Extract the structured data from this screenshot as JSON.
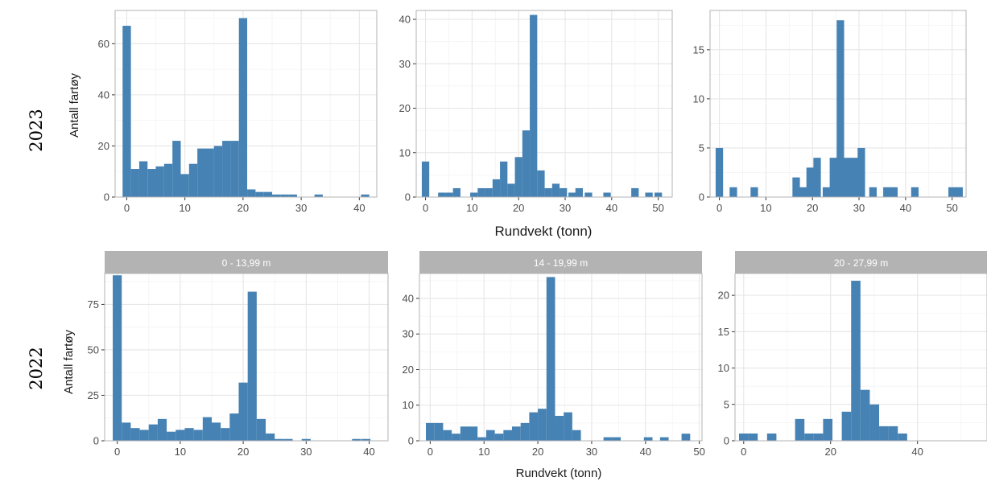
{
  "rows": [
    {
      "year": "2023",
      "ylabel": "Antall fartøy",
      "xlabel": "Rundvekt (tonn)"
    },
    {
      "year": "2022",
      "ylabel": "Antall fartøy",
      "xlabel": "Rundvekt (tonn)"
    }
  ],
  "colors": {
    "bar": "#4682b4",
    "strip": "#b3b3b3",
    "grid_major": "#e6e6e6",
    "grid_minor": "#f3f3f3",
    "border": "#b3b3b3"
  },
  "chart_data": [
    {
      "type": "bar",
      "facet": "2023 / 0 - 13,99 m",
      "strip": "",
      "x_ticks": [
        0,
        10,
        20,
        30,
        40
      ],
      "y_ticks": [
        0,
        20,
        40,
        60
      ],
      "xlim": [
        -2,
        43
      ],
      "ylim": [
        0,
        73
      ],
      "bin_width": 1.43,
      "x": [
        0,
        1.43,
        2.86,
        4.29,
        5.71,
        7.14,
        8.57,
        10,
        11.43,
        12.86,
        14.29,
        15.71,
        17.14,
        18.57,
        20,
        21.43,
        22.86,
        24.29,
        25.71,
        27.14,
        28.57,
        33,
        41
      ],
      "values": [
        67,
        11,
        14,
        11,
        12,
        13,
        22,
        9,
        13,
        19,
        19,
        20,
        22,
        22,
        70,
        3,
        2,
        2,
        1,
        1,
        1,
        1,
        1
      ]
    },
    {
      "type": "bar",
      "facet": "2023 / 14 - 19,99 m",
      "strip": "",
      "x_ticks": [
        0,
        10,
        20,
        30,
        40,
        50
      ],
      "y_ticks": [
        0,
        10,
        20,
        30,
        40
      ],
      "xlim": [
        -2,
        53
      ],
      "ylim": [
        0,
        42
      ],
      "bin_width": 1.6,
      "x": [
        0,
        3.5,
        5.1,
        6.7,
        10.4,
        12,
        13.6,
        15.2,
        16.8,
        18.4,
        20,
        21.6,
        23.2,
        24.8,
        26.4,
        28,
        29.6,
        31.5,
        33,
        35,
        39,
        45,
        48,
        50
      ],
      "values": [
        8,
        1,
        1,
        2,
        1,
        2,
        2,
        4,
        8,
        3,
        9,
        15,
        41,
        6,
        2,
        3,
        2,
        1,
        2,
        1,
        1,
        2,
        1,
        1
      ]
    },
    {
      "type": "bar",
      "facet": "2023 / 20 - 27,99 m",
      "strip": "",
      "x_ticks": [
        0,
        10,
        20,
        30,
        40,
        50
      ],
      "y_ticks": [
        0,
        5,
        10,
        15
      ],
      "xlim": [
        -2,
        53
      ],
      "ylim": [
        0,
        19
      ],
      "bin_width": 1.6,
      "x": [
        0,
        3,
        7.5,
        16.5,
        18,
        19.5,
        21,
        23,
        24.5,
        26,
        27.5,
        29,
        30.5,
        33,
        36,
        37.5,
        42,
        50,
        51.5
      ],
      "values": [
        5,
        1,
        1,
        2,
        1,
        3,
        4,
        1,
        4,
        18,
        4,
        4,
        5,
        1,
        1,
        1,
        1,
        1,
        1
      ]
    },
    {
      "type": "bar",
      "facet": "2022 / 0 - 13,99 m",
      "strip": "0 - 13,99 m",
      "x_ticks": [
        0,
        10,
        20,
        30,
        40
      ],
      "y_ticks": [
        0,
        25,
        50,
        75
      ],
      "xlim": [
        -2,
        43
      ],
      "ylim": [
        0,
        92
      ],
      "bin_width": 1.43,
      "x": [
        0,
        1.43,
        2.86,
        4.29,
        5.71,
        7.14,
        8.57,
        10,
        11.43,
        12.86,
        14.29,
        15.71,
        17.14,
        18.57,
        20,
        21.43,
        22.86,
        24.29,
        25.71,
        27.14,
        30,
        38,
        39.5
      ],
      "values": [
        91,
        10,
        7,
        6,
        9,
        12,
        5,
        6,
        7,
        6,
        13,
        10,
        7,
        15,
        32,
        82,
        12,
        4,
        1,
        1,
        1,
        1,
        1
      ]
    },
    {
      "type": "bar",
      "facet": "2022 / 14 - 19,99 m",
      "strip": "14 - 19,99 m",
      "x_ticks": [
        0,
        10,
        20,
        30,
        40,
        50
      ],
      "y_ticks": [
        0,
        10,
        20,
        30,
        40
      ],
      "xlim": [
        -2,
        50.5
      ],
      "ylim": [
        0,
        47
      ],
      "bin_width": 1.6,
      "x": [
        0,
        1.6,
        3.2,
        4.8,
        6.4,
        8,
        9.6,
        11.2,
        12.8,
        14.4,
        16,
        17.6,
        19.2,
        20.8,
        22.4,
        24,
        25.6,
        27.2,
        33,
        34.6,
        40.5,
        43.5,
        47.5
      ],
      "values": [
        5,
        5,
        3,
        2,
        4,
        4,
        1,
        3,
        2,
        3,
        4,
        5,
        8,
        9,
        46,
        7,
        8,
        3,
        1,
        1,
        1,
        1,
        2
      ]
    },
    {
      "type": "bar",
      "facet": "2022 / 20 - 27,99 m",
      "strip": "20 - 27,99 m",
      "x_ticks": [
        0,
        20,
        40
      ],
      "y_ticks": [
        0,
        5,
        10,
        15,
        20
      ],
      "xlim": [
        -2,
        56
      ],
      "ylim": [
        0,
        23
      ],
      "bin_width": 2.15,
      "x": [
        0,
        2.15,
        6.45,
        12.9,
        15.05,
        17.2,
        19.35,
        23.65,
        25.8,
        27.95,
        30.1,
        32.25,
        34.4,
        36.55
      ],
      "values": [
        1,
        1,
        1,
        3,
        1,
        1,
        3,
        4,
        22,
        7,
        5,
        2,
        2,
        1
      ]
    }
  ]
}
